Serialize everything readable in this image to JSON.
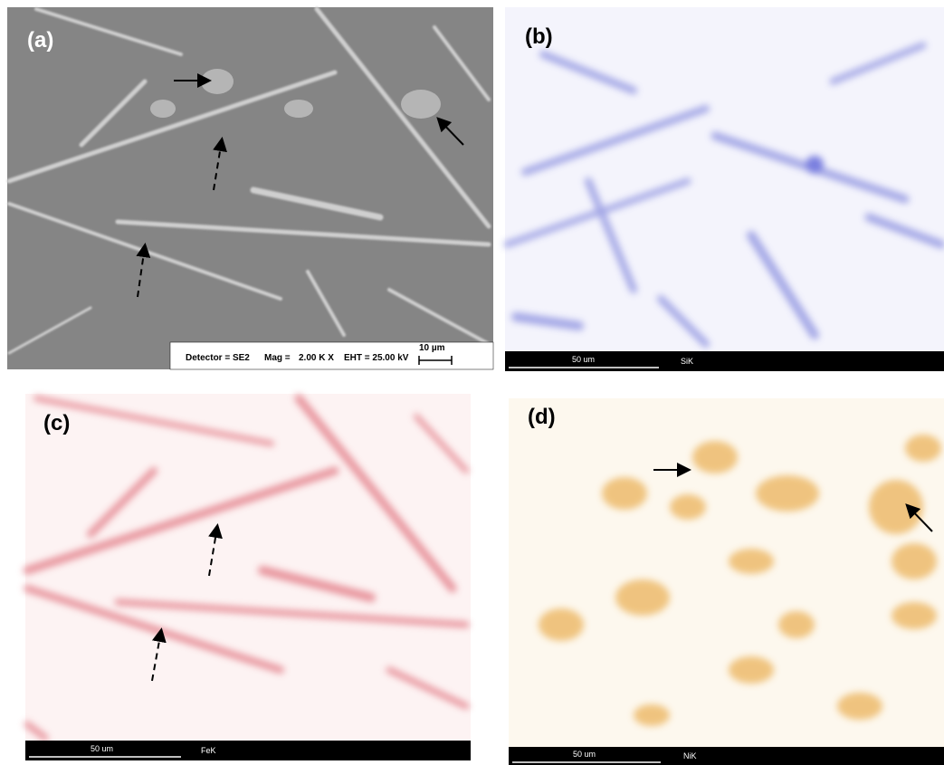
{
  "panels": [
    {
      "label": "(a)",
      "info": {
        "detector": "Detector = SE2",
        "mag_label": "Mag =",
        "mag": "2.00 K X",
        "eht": "EHT = 25.00 kV",
        "scale": "10 µm"
      }
    },
    {
      "label": "(b)",
      "scale": "50 um",
      "element": "SiK"
    },
    {
      "label": "(c)",
      "scale": "50 um",
      "element": "FeK"
    },
    {
      "label": "(d)",
      "scale": "50 um",
      "element": "NiK"
    }
  ]
}
